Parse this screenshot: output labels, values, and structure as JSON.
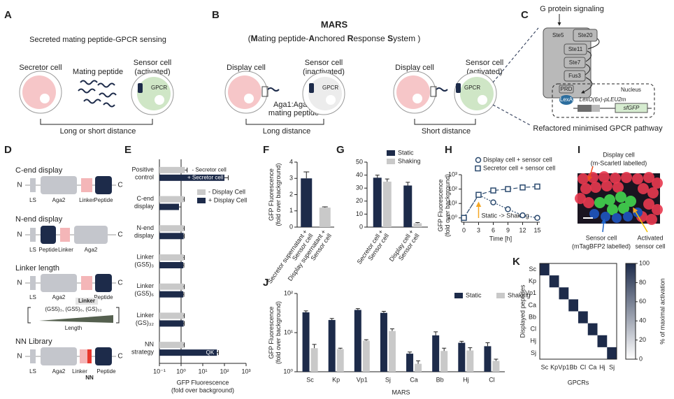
{
  "panel_a": {
    "label": "A",
    "title": "Secreted mating peptide-GPCR sensing",
    "secretor": "Secretor cell",
    "sensor": "Sensor cell",
    "sensor_state": "(activated)",
    "peptide": "Mating peptide",
    "gpcr": "GPCR",
    "distance": "Long or short distance"
  },
  "panel_b": {
    "label": "B",
    "title": "MARS",
    "subtitle_parts": [
      "(",
      "M",
      "ating peptide-",
      "A",
      "nchored ",
      "R",
      "esponse ",
      "S",
      "ystem )"
    ],
    "left": {
      "display": "Display cell",
      "sensor": "Sensor cell",
      "sensor_state": "(inactivated)",
      "gpcr": "GPCR",
      "anchor": "Aga1:Aga2-",
      "anchor2": "mating peptide",
      "distance": "Long distance"
    },
    "right": {
      "display": "Display cell",
      "sensor": "Sensor cell",
      "sensor_state": "(activated)",
      "gpcr": "GPCR",
      "distance": "Short distance"
    }
  },
  "panel_c": {
    "label": "C",
    "title": "G protein signaling",
    "kinases": [
      "Ste5",
      "Ste20",
      "Ste11",
      "Ste7",
      "Fus3"
    ],
    "nucleus": "Nucleus",
    "prd": "PRD",
    "lexa": "LexA",
    "promoter": "LexO(6x)-pLEU2m",
    "reporter": "sfGFP",
    "caption": "Refactored minimised GPCR pathway"
  },
  "panel_d": {
    "label": "D",
    "n": "N",
    "c": "C",
    "ls": "LS",
    "aga2": "Aga2",
    "linker": "Linker",
    "peptide": "Peptide",
    "rows": [
      "C-end display",
      "N-end display",
      "Linker length",
      "NN Library"
    ],
    "linker_variants": "(GS5)₃, (GS5)₆, (GS)₃₂",
    "length": "Length",
    "nn": "NN"
  },
  "panel_i": {
    "label": "I",
    "display": "Display cell",
    "display_note": "(m-ScarletI labelled)",
    "sensor": "Sensor cell",
    "sensor_note": "(mTagBFP2 labelled)",
    "activated": "Activated",
    "activated2": "sensor cell"
  },
  "chart_data": [
    {
      "type": "hbar",
      "label": "E",
      "categories": [
        "Positive\ncontrol",
        "C-end\ndisplay",
        "N-end\ndisplay",
        "Linker\n(GS5)₃",
        "Linker\n(GS5)₆",
        "Linker\n(GS)₃₂",
        "NN\nstrategy"
      ],
      "series": [
        {
          "name": "- Display Cell",
          "color": "#c9c9c9",
          "values": [
            1.5,
            1.3,
            1.3,
            1.3,
            1.3,
            1.3,
            1.3
          ],
          "errors": [
            0.4,
            0.1,
            0.1,
            0.1,
            0.1,
            0.1,
            0.1
          ]
        },
        {
          "name": "+ Display Cell",
          "color": "#1d2b4a",
          "values": [
            100,
            0.8,
            1.3,
            1.25,
            1.25,
            1.3,
            45
          ],
          "errors": [
            50,
            0.2,
            0.1,
            0.1,
            0.1,
            0.1,
            8
          ]
        }
      ],
      "annotations": [
        "- Secretor cell",
        "+ Secretor cell",
        "QK"
      ],
      "x_label": "GFP Fluorescence\n(fold over background)",
      "xscale": "log",
      "xlim": [
        0.1,
        1000
      ],
      "xticks": [
        {
          "value": 0.1,
          "label": "10⁻¹"
        },
        {
          "value": 1,
          "label": "10⁰"
        },
        {
          "value": 10,
          "label": "10¹"
        },
        {
          "value": 100,
          "label": "10²"
        },
        {
          "value": 1000,
          "label": "10³"
        }
      ]
    },
    {
      "type": "bar",
      "label": "F",
      "categories": [
        "Secretor supernatant +\nSensor cell",
        "Display supernatant +\nSensor cell"
      ],
      "values": [
        3.0,
        1.2
      ],
      "errors": [
        0.4,
        0.05
      ],
      "colors": [
        "#1d2b4a",
        "#c9c9c9"
      ],
      "y_label": "GFP Fluorescence\n(fold over background)",
      "ylim": [
        0,
        4
      ],
      "yticks": [
        0,
        1,
        2,
        3,
        4
      ]
    },
    {
      "type": "grouped_bar",
      "label": "G",
      "categories": [
        "Secretor cell +\nSensor cell",
        "Display cell +\nSensor cell"
      ],
      "series": [
        {
          "name": "Static",
          "color": "#1d2b4a",
          "values": [
            38,
            32
          ],
          "errors": [
            2,
            2.5
          ]
        },
        {
          "name": "Shaking",
          "color": "#c9c9c9",
          "values": [
            35,
            3
          ],
          "errors": [
            2,
            0.5
          ]
        }
      ],
      "ylim": [
        0,
        50
      ],
      "yticks": [
        0,
        10,
        20,
        30,
        40,
        50
      ]
    },
    {
      "type": "line",
      "label": "H",
      "x": [
        0,
        3,
        6,
        9,
        12,
        15
      ],
      "series": [
        {
          "name": "Display cell + sensor cell",
          "color": "#2b4a6f",
          "values": [
            1,
            40,
            12,
            4,
            1.5,
            1
          ]
        },
        {
          "name": "Secretor cell + sensor cell",
          "color": "#2b4a6f",
          "values": [
            1,
            40,
            80,
            100,
            130,
            150
          ]
        }
      ],
      "annotation": "Static -> Shaking",
      "x_label": "Time [h]",
      "y_label": "GFP Fluorescence\n(fold over background)",
      "xlim": [
        -0.5,
        15.5
      ],
      "xticks": [
        0,
        3,
        6,
        9,
        12,
        15
      ],
      "yscale": "log",
      "ylim": [
        0.5,
        1000
      ],
      "yticks": [
        {
          "value": 1,
          "label": "10⁰"
        },
        {
          "value": 10,
          "label": "10¹"
        },
        {
          "value": 100,
          "label": "10²"
        },
        {
          "value": 1000,
          "label": "10³"
        }
      ]
    },
    {
      "type": "grouped_bar",
      "label": "J",
      "categories": [
        "Sc",
        "Kp",
        "Vp1",
        "Sj",
        "Ca",
        "Bb",
        "Hj",
        "Cl"
      ],
      "series": [
        {
          "name": "Static",
          "color": "#1d2b4a",
          "values": [
            33,
            21,
            38,
            32,
            2.9,
            8.5,
            5.5,
            4.5
          ],
          "errors": [
            3,
            2,
            3,
            3,
            0.3,
            2,
            0.5,
            1
          ]
        },
        {
          "name": "Shaking",
          "color": "#c9c9c9",
          "values": [
            4,
            3.8,
            6.2,
            11,
            1.6,
            3.4,
            3.5,
            1.9
          ],
          "errors": [
            1,
            0.2,
            0.4,
            1.5,
            0.3,
            0.6,
            0.6,
            0.2
          ]
        }
      ],
      "x_label": "MARS",
      "y_label": "GFP Fluorescence\n(fold over background)",
      "yscale": "log",
      "ylim": [
        1,
        100
      ],
      "yticks": [
        {
          "value": 1,
          "label": "10⁰"
        },
        {
          "value": 10,
          "label": "10¹"
        },
        {
          "value": 100,
          "label": "10²"
        }
      ]
    },
    {
      "type": "heatmap",
      "label": "K",
      "rows": [
        "Sc",
        "Kp",
        "Vp1",
        "Ca",
        "Bb",
        "Cl",
        "Hj",
        "Sj"
      ],
      "columns": [
        "Sc",
        "Kp",
        "Vp1",
        "Bb",
        "Cl",
        "Ca",
        "Hj",
        "Sj"
      ],
      "z": [
        [
          100,
          0,
          0,
          0,
          0,
          0,
          0,
          0
        ],
        [
          0,
          100,
          0,
          0,
          0,
          0,
          0,
          0
        ],
        [
          0,
          0,
          100,
          0,
          0,
          0,
          0,
          0
        ],
        [
          0,
          0,
          0,
          100,
          0,
          0,
          0,
          0
        ],
        [
          0,
          0,
          0,
          0,
          100,
          0,
          0,
          0
        ],
        [
          0,
          0,
          0,
          0,
          0,
          100,
          0,
          0
        ],
        [
          0,
          0,
          0,
          0,
          0,
          0,
          100,
          0
        ],
        [
          0,
          0,
          0,
          0,
          0,
          0,
          0,
          100
        ]
      ],
      "x_label": "GPCRs",
      "y_label": "Displayed peptides",
      "colorbar_label": "% of maximal activation",
      "zlim": [
        0,
        100
      ],
      "zticks": [
        0,
        20,
        40,
        60,
        80,
        100
      ],
      "colors": [
        "#ffffff",
        "#1d2b4a"
      ]
    }
  ]
}
